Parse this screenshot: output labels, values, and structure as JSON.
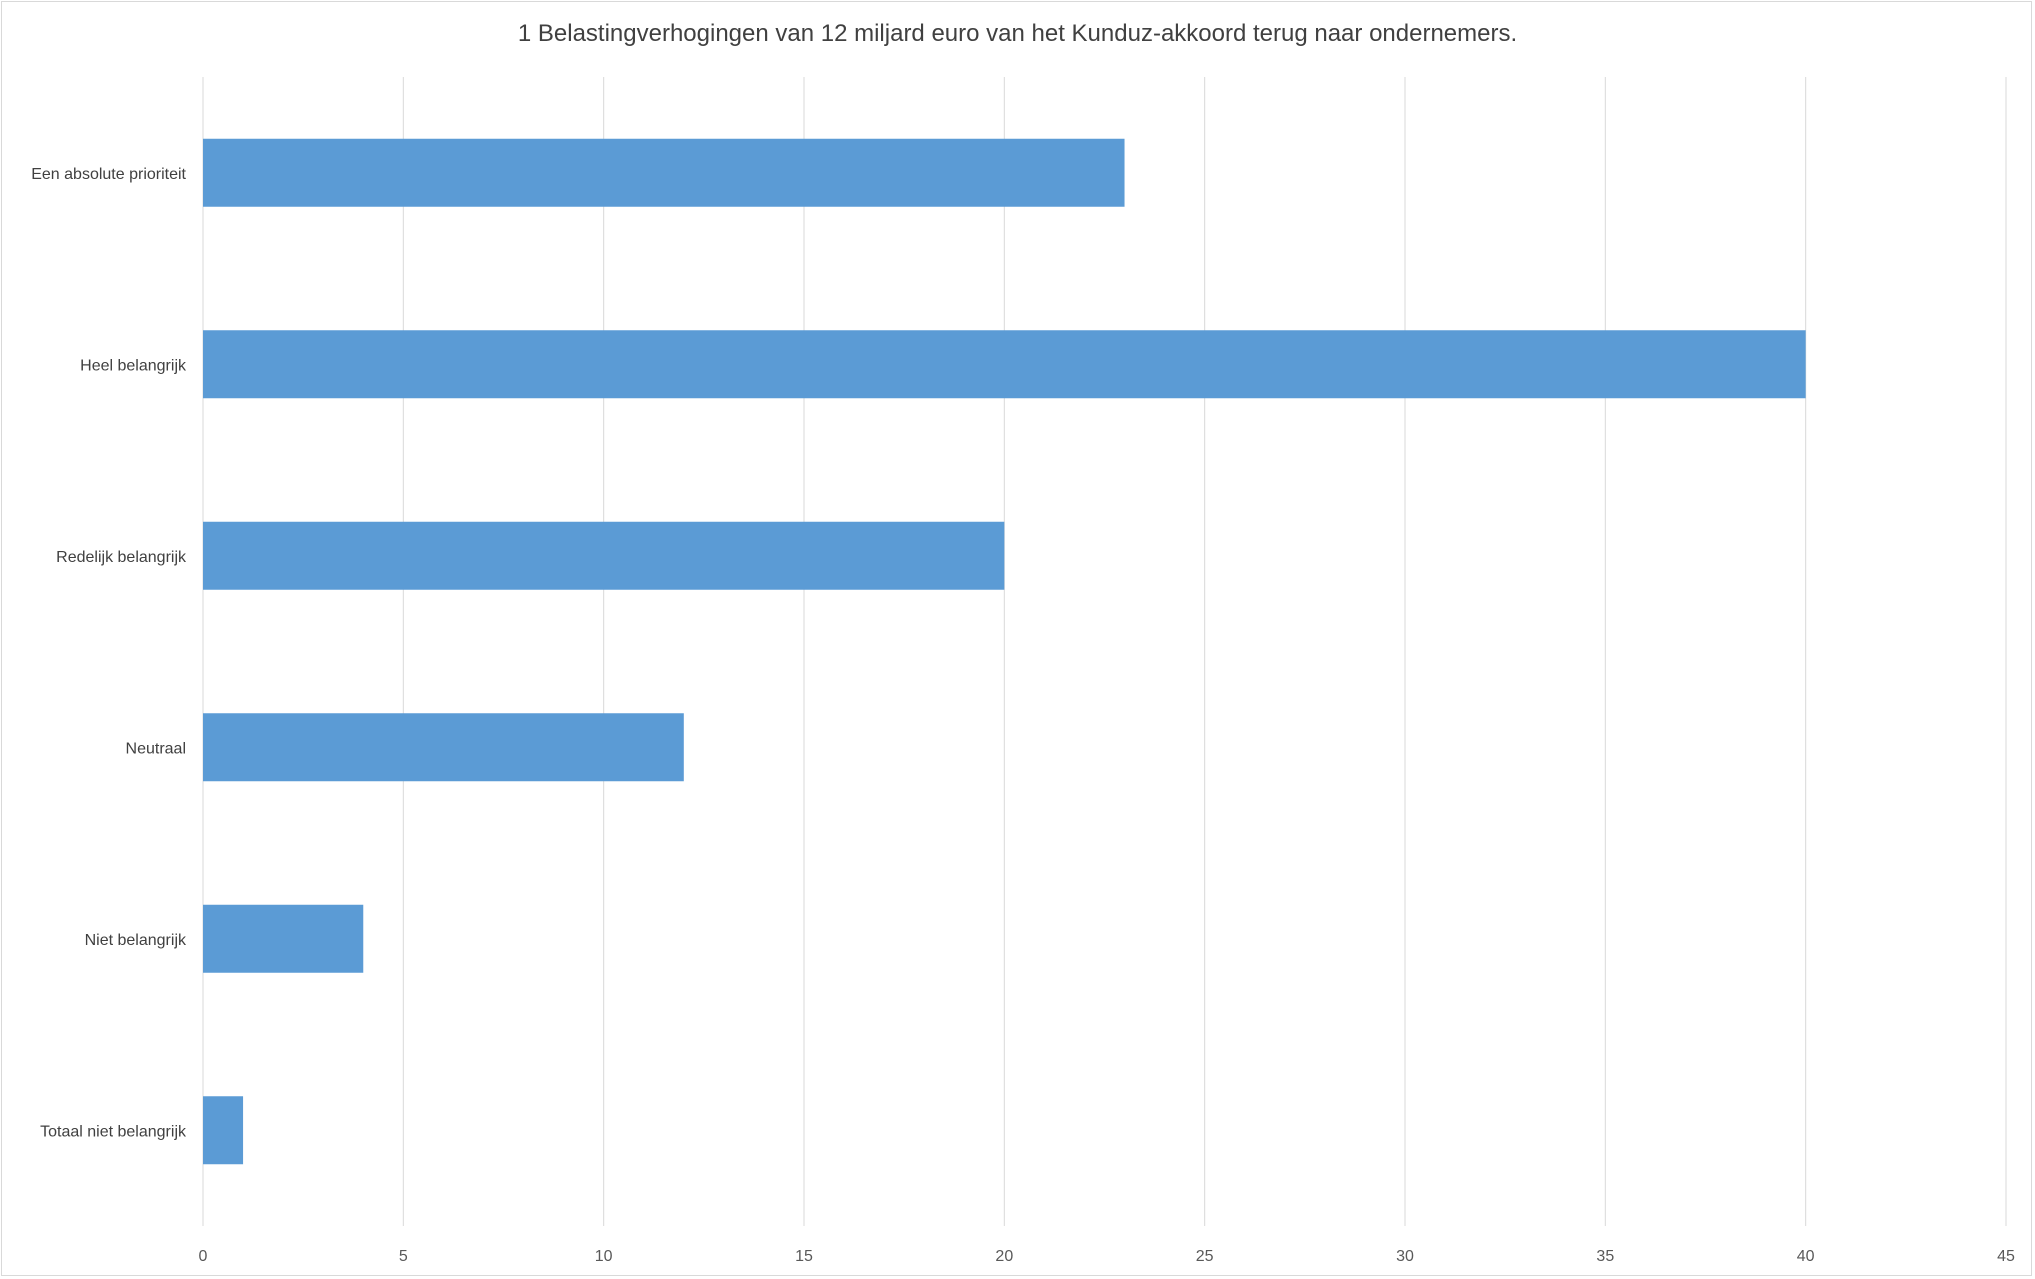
{
  "chart_data": {
    "type": "bar",
    "orientation": "horizontal",
    "title": "1 Belastingverhogingen van 12 miljard euro van het Kunduz-akkoord terug naar ondernemers.",
    "xlabel": "",
    "ylabel": "",
    "categories": [
      "Een absolute prioriteit",
      "Heel belangrijk",
      "Redelijk belangrijk",
      "Neutraal",
      "Niet belangrijk",
      "Totaal niet belangrijk"
    ],
    "values": [
      23,
      40,
      20,
      12,
      4,
      1
    ],
    "xlim": [
      0,
      45
    ],
    "x_ticks": [
      "0",
      "5",
      "10",
      "15",
      "20",
      "25",
      "30",
      "35",
      "40",
      "45"
    ],
    "grid": "vertical",
    "legend": "none",
    "colors": {
      "bar": "#5b9bd5",
      "gridline": "#d9d9d9",
      "border": "#d9d9d9"
    }
  }
}
